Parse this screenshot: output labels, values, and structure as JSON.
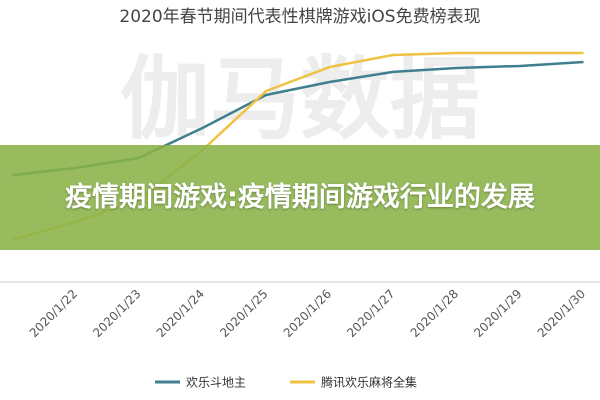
{
  "chart_data": {
    "type": "line",
    "title": "2020年春节期间代表性棋牌游戏iOS免费榜表现",
    "watermark": "伽马数据",
    "categories": [
      null,
      "2020/1/22",
      "2020/1/23",
      "2020/1/24",
      "2020/1/25",
      "2020/1/26",
      "2020/1/27",
      "2020/1/28",
      "2020/1/29",
      "2020/1/30"
    ],
    "series": [
      {
        "name": "欢乐斗地主",
        "color": "#3f7f8f",
        "values": [
          38.6,
          41.8,
          46.4,
          60,
          75,
          80.9,
          85.5,
          87.3,
          88.2,
          90
        ]
      },
      {
        "name": "腾讯欢乐麻将全集",
        "color": "#f0c244",
        "values": [
          9.1,
          17.3,
          27.3,
          50,
          76.8,
          87.7,
          93.2,
          94.1,
          94.1,
          94.1
        ]
      }
    ],
    "ylim": [
      0,
      100
    ]
  },
  "banner": {
    "text": "疫情期间游戏:疫情期间游戏行业的发展"
  }
}
